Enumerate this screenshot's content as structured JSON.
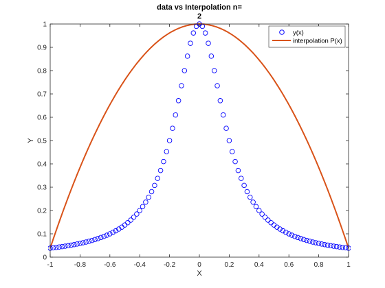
{
  "chart_data": {
    "type": "line",
    "title_line1": "data vs Interpolation n=",
    "title_line2": "2",
    "xlabel": "X",
    "ylabel": "Y",
    "xlim": [
      -1,
      1
    ],
    "ylim": [
      0,
      1
    ],
    "xticks": [
      -1,
      -0.8,
      -0.6,
      -0.4,
      -0.2,
      0,
      0.2,
      0.4,
      0.6,
      0.8,
      1
    ],
    "xtick_labels": [
      "-1",
      "-0.8",
      "-0.6",
      "-0.4",
      "-0.2",
      "0",
      "0.2",
      "0.4",
      "0.6",
      "0.8",
      "1"
    ],
    "yticks": [
      0,
      0.1,
      0.2,
      0.3,
      0.4,
      0.5,
      0.6,
      0.7,
      0.8,
      0.9,
      1
    ],
    "ytick_labels": [
      "0",
      "0.1",
      "0.2",
      "0.3",
      "0.4",
      "0.5",
      "0.6",
      "0.7",
      "0.8",
      "0.9",
      "1"
    ],
    "grid": false,
    "legend_position": "top-right",
    "series": [
      {
        "name": "y(x)",
        "style": "markers",
        "marker": "circle",
        "color": "#0000FF",
        "x_start": -1,
        "x_end": 1,
        "x_step": 0.02,
        "function": "1/(1+25*x^2)"
      },
      {
        "name": "interpolation P(x)",
        "style": "line",
        "color": "#D95319",
        "x": [
          -1,
          0,
          1
        ],
        "y": [
          0.0385,
          1,
          0.0385
        ],
        "function": "1-0.9615*x^2"
      }
    ]
  }
}
